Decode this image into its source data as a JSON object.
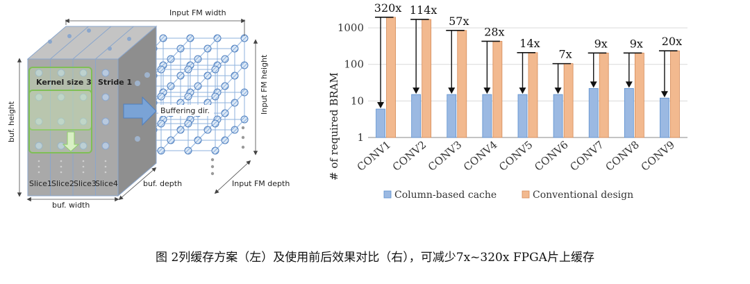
{
  "left_diagram": {
    "input_fm_width": "Input FM width",
    "input_fm_height": "Input FM height",
    "input_fm_depth": "Input FM depth",
    "buf_height": "buf. height",
    "buf_width": "buf. width",
    "buf_depth": "buf. depth",
    "kernel_size": "Kernel size 3",
    "stride": "Stride 1",
    "buffering_dir": "Buffering dir.",
    "slices": [
      "Slice1",
      "Slice2",
      "Slice3",
      "Slice4"
    ]
  },
  "chart_data": {
    "type": "bar",
    "scale": "log",
    "ylabel": "# of required BRAM",
    "ylim": [
      1,
      3000
    ],
    "yticks": [
      1,
      10,
      100,
      1000
    ],
    "ytick_labels": [
      "1",
      "10",
      "100",
      "1000"
    ],
    "categories": [
      "CONV1",
      "CONV2",
      "CONV3",
      "CONV4",
      "CONV5",
      "CONV6",
      "CONV7",
      "CONV8",
      "CONV9"
    ],
    "series": [
      {
        "name": "Column-based cache",
        "color": "#9bb9e2",
        "values": [
          6,
          15,
          15,
          15,
          15,
          15,
          22,
          22,
          12
        ]
      },
      {
        "name": "Conventional design",
        "color": "#f2b98f",
        "values": [
          1950,
          1700,
          850,
          430,
          210,
          105,
          205,
          205,
          235
        ]
      }
    ],
    "ratios": [
      "320x",
      "114x",
      "57x",
      "28x",
      "14x",
      "7x",
      "9x",
      "9x",
      "20x"
    ]
  },
  "caption": "图 2列缓存方案（左）及使用前后效果对比（右），可减少7x~320x FPGA片上缓存"
}
